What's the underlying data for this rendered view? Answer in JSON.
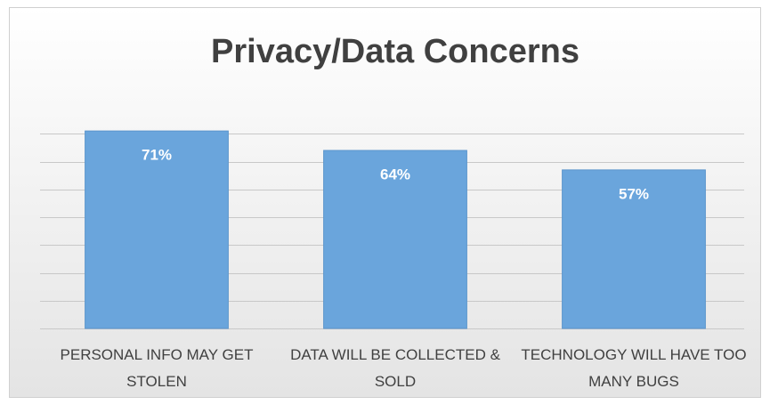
{
  "chart_data": {
    "type": "bar",
    "title": "Privacy/Data Concerns",
    "categories": [
      "PERSONAL INFO MAY GET STOLEN",
      "DATA WILL BE COLLECTED & SOLD",
      "TECHNOLOGY WILL HAVE TOO MANY BUGS"
    ],
    "values": [
      71,
      64,
      57
    ],
    "value_labels": [
      "71%",
      "64%",
      "57%"
    ],
    "color": "#6aa5dc",
    "ylim": [
      0,
      80
    ],
    "yticks": [
      0,
      10,
      20,
      30,
      40,
      50,
      60,
      70
    ],
    "grid": true
  }
}
